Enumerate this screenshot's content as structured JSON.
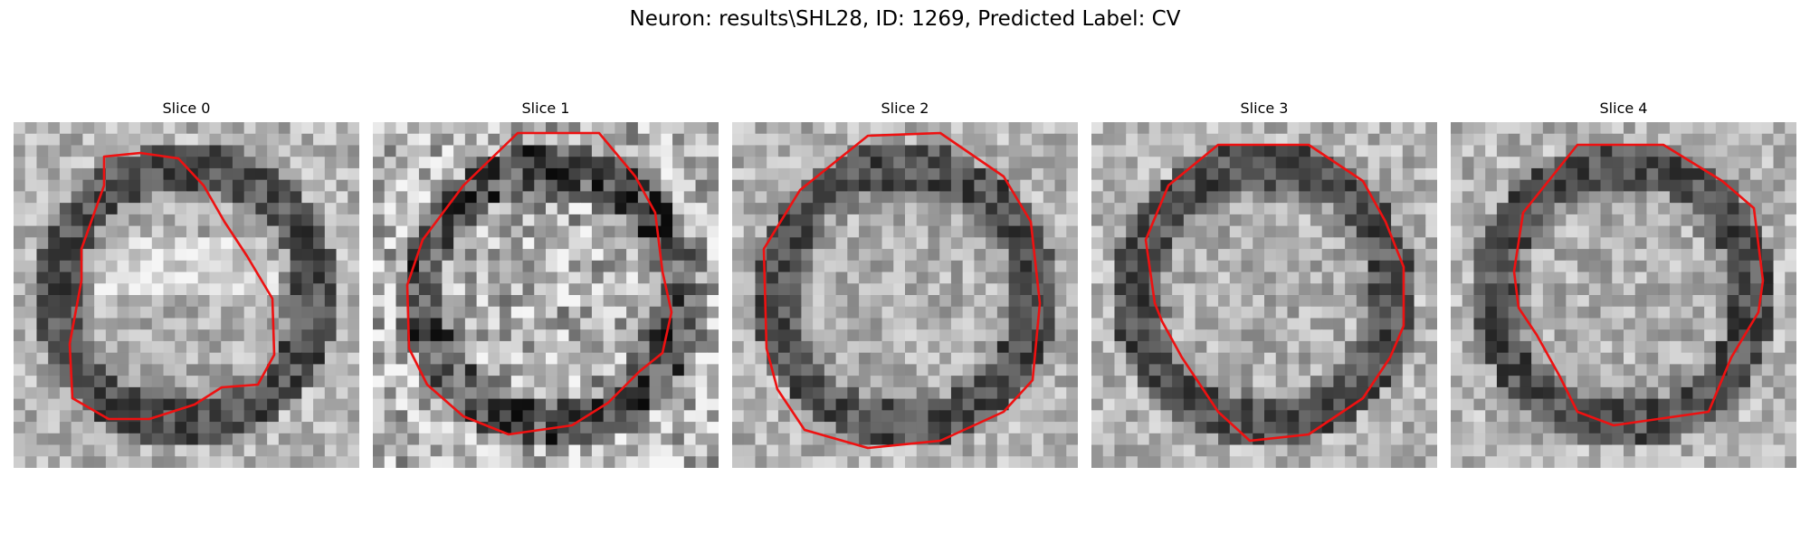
{
  "figure": {
    "title": "Neuron: results\\SHL28, ID: 1269, Predicted Label: CV",
    "contour_color": "#ee1111",
    "colormap": "grayscale",
    "grid_size": 30
  },
  "slices": [
    {
      "title": "Slice 0"
    },
    {
      "title": "Slice 1"
    },
    {
      "title": "Slice 2"
    },
    {
      "title": "Slice 3"
    },
    {
      "title": "Slice 4"
    }
  ]
}
